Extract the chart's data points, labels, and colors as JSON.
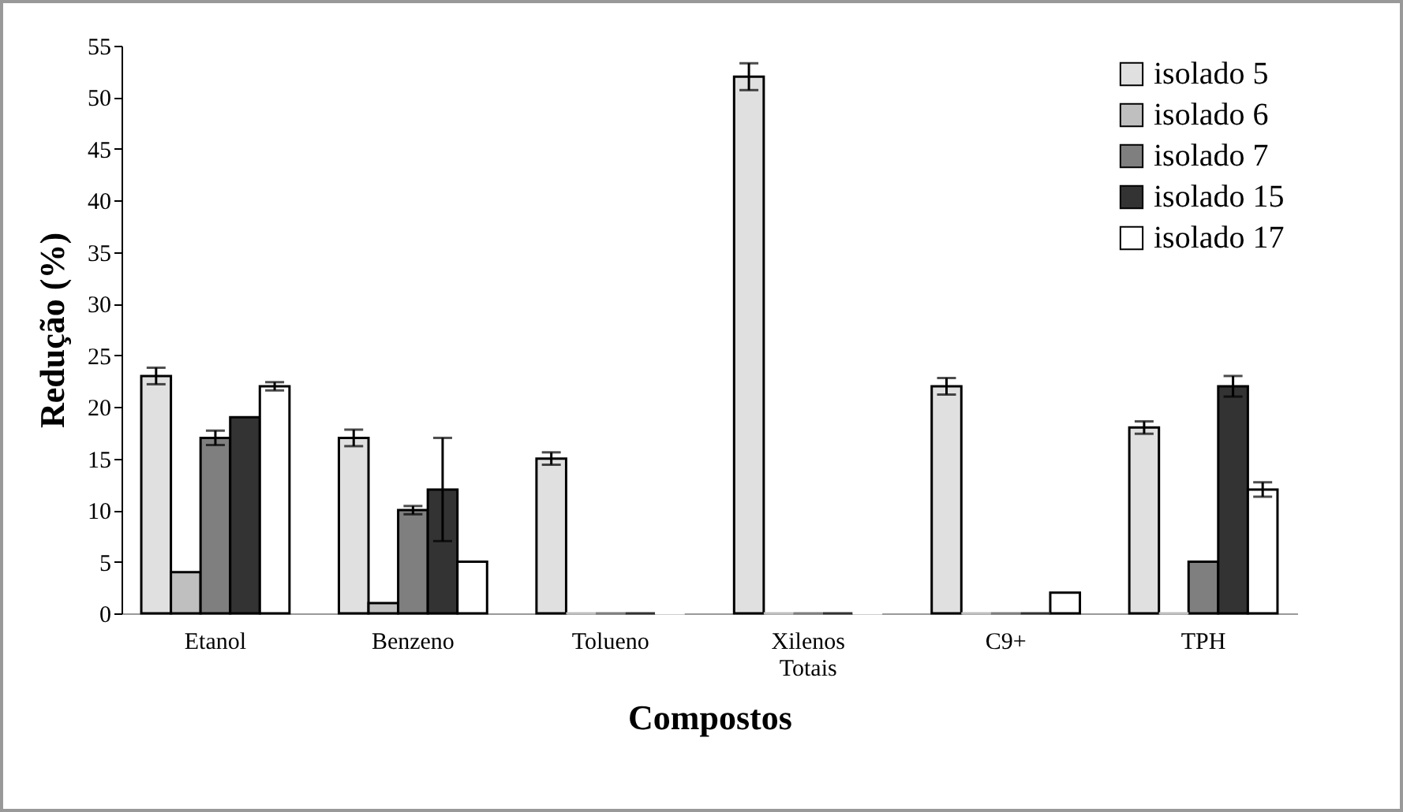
{
  "chart_data": {
    "type": "bar",
    "xlabel": "Compostos",
    "ylabel": "Redução (%)",
    "categories": [
      "Etanol",
      "Benzeno",
      "Tolueno",
      "Xilenos Totais",
      "C9+",
      "TPH"
    ],
    "ylim": [
      0,
      55
    ],
    "yticks": [
      0,
      5,
      10,
      15,
      20,
      25,
      30,
      35,
      40,
      45,
      50,
      55
    ],
    "grid": false,
    "legend": "top right",
    "series": [
      {
        "name": "isolado 5",
        "color": "#e0e0e0",
        "values": [
          23,
          17,
          15,
          52,
          22,
          18
        ],
        "errors": [
          0.8,
          0.8,
          0.6,
          1.3,
          0.8,
          0.6
        ]
      },
      {
        "name": "isolado 6",
        "color": "#bfbfbf",
        "values": [
          4,
          1,
          0,
          0,
          0,
          0
        ],
        "errors": [
          null,
          null,
          null,
          null,
          null,
          null
        ]
      },
      {
        "name": "isolado 7",
        "color": "#7f7f7f",
        "values": [
          17,
          10,
          0,
          0,
          0,
          5
        ],
        "errors": [
          0.7,
          0.4,
          null,
          null,
          null,
          null
        ]
      },
      {
        "name": "isolado 15",
        "color": "#333333",
        "values": [
          19,
          12,
          0,
          0,
          0,
          22
        ],
        "errors": [
          null,
          5,
          null,
          null,
          null,
          1
        ]
      },
      {
        "name": "isolado 17",
        "color": "#ffffff",
        "values": [
          22,
          5,
          0,
          0,
          2,
          12
        ],
        "errors": [
          0.4,
          null,
          null,
          null,
          null,
          0.7
        ]
      }
    ]
  }
}
